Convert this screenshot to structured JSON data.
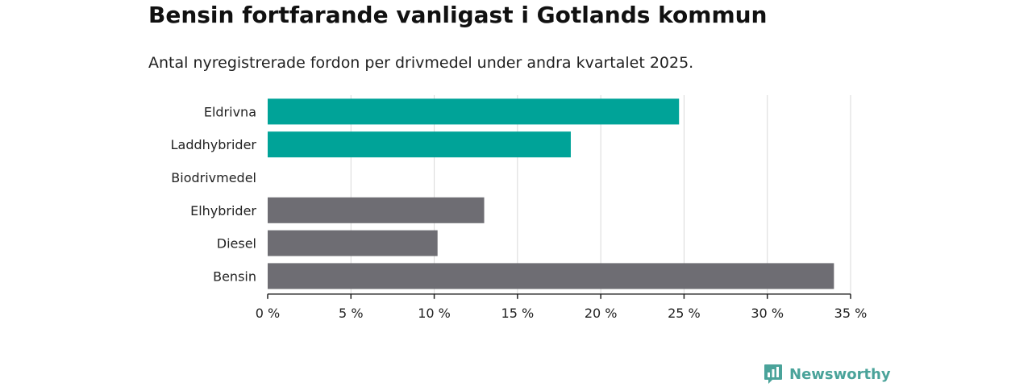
{
  "title": "Bensin fortfarande vanligast i Gotlands kommun",
  "subtitle": "Antal nyregistrerade fordon per drivmedel under andra kvartalet 2025.",
  "brand": {
    "name": "Newsworthy",
    "icon": "newsworthy-logo-icon",
    "color": "#4aa39a"
  },
  "colors": {
    "highlight": "#00a398",
    "neutral": "#6e6d73",
    "grid": "#d9d9d9",
    "axis": "#222222"
  },
  "chart_data": {
    "type": "bar",
    "orientation": "horizontal",
    "title": "Bensin fortfarande vanligast i Gotlands kommun",
    "subtitle": "Antal nyregistrerade fordon per drivmedel under andra kvartalet 2025.",
    "xlabel": "",
    "ylabel": "",
    "categories": [
      "Eldrivna",
      "Laddhybrider",
      "Biodrivmedel",
      "Elhybrider",
      "Diesel",
      "Bensin"
    ],
    "values": [
      24.7,
      18.2,
      0,
      13.0,
      10.2,
      34.0
    ],
    "bar_colors": [
      "#00a398",
      "#00a398",
      "#00a398",
      "#6e6d73",
      "#6e6d73",
      "#6e6d73"
    ],
    "xlim": [
      0,
      35
    ],
    "xticks": [
      0,
      5,
      10,
      15,
      20,
      25,
      30,
      35
    ],
    "xtick_labels": [
      "0 %",
      "5 %",
      "10 %",
      "15 %",
      "20 %",
      "25 %",
      "30 %",
      "35 %"
    ],
    "grid": true,
    "legend": "none"
  }
}
